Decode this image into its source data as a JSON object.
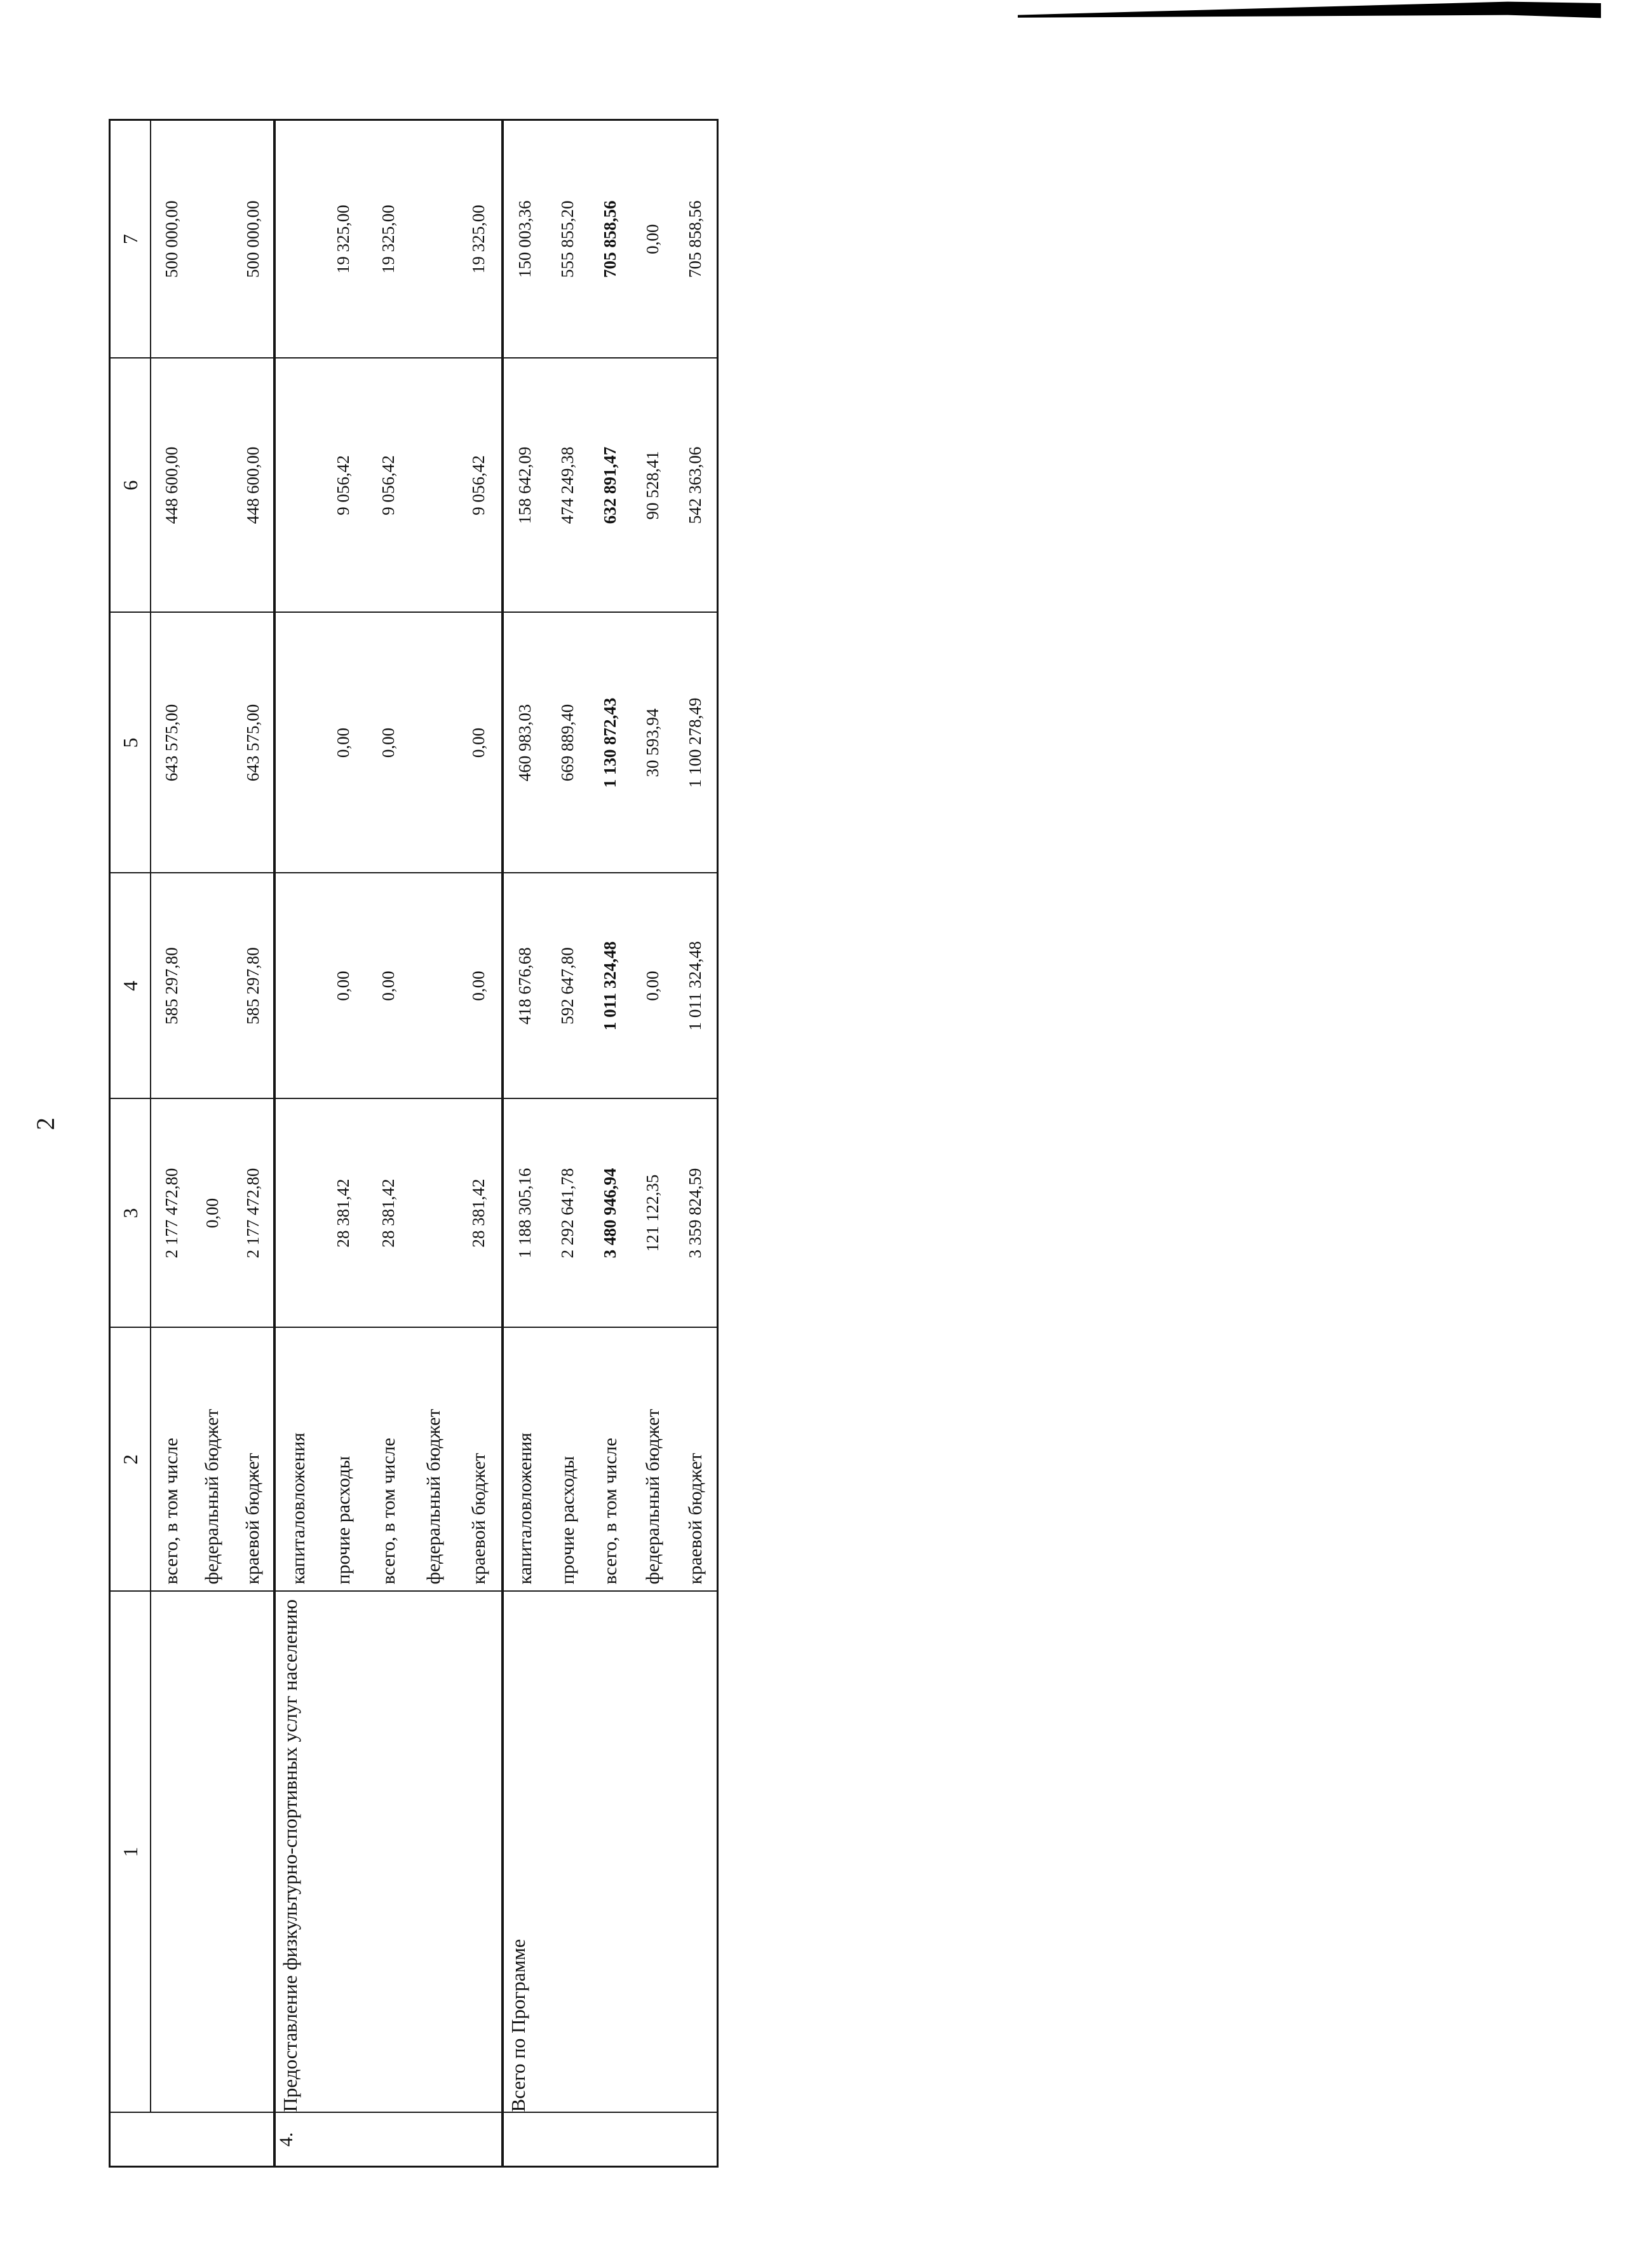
{
  "page": {
    "number": "2"
  },
  "colors": {
    "paper": "#ffffff",
    "ink": "#111111",
    "table_border": "#1b1b1b",
    "artifact": "#000000"
  },
  "table": {
    "header": [
      "1",
      "2",
      "3",
      "4",
      "5",
      "6",
      "7"
    ],
    "groups": [
      {
        "num": "",
        "description": "",
        "labels": [
          "всего, в том числе",
          "федеральный бюджет",
          "краевой бюджет"
        ],
        "values": {
          "c3": [
            "2 177 472,80",
            "0,00",
            "2 177 472,80"
          ],
          "c4": [
            "585 297,80",
            "",
            "585 297,80"
          ],
          "c5": [
            "643 575,00",
            "",
            "643 575,00"
          ],
          "c6": [
            "448 600,00",
            "",
            "448 600,00"
          ],
          "c7": [
            "500 000,00",
            "",
            "500 000,00"
          ]
        }
      },
      {
        "num": "4.",
        "description": "Предоставление физкультурно-спортивных услуг населению",
        "labels": [
          "капиталовложения",
          "прочие расходы",
          "всего, в том числе",
          "федеральный бюджет",
          "краевой бюджет"
        ],
        "values": {
          "c3": [
            "",
            "28 381,42",
            "28 381,42",
            "",
            "28 381,42"
          ],
          "c4": [
            "",
            "0,00",
            "0,00",
            "",
            "0,00"
          ],
          "c5": [
            "",
            "0,00",
            "0,00",
            "",
            "0,00"
          ],
          "c6": [
            "",
            "9 056,42",
            "9 056,42",
            "",
            "9 056,42"
          ],
          "c7": [
            "",
            "19 325,00",
            "19 325,00",
            "",
            "19 325,00"
          ]
        }
      },
      {
        "num": "",
        "description": "Всего по Программе",
        "labels": [
          "капиталовложения",
          "прочие расходы",
          "всего, в том числе",
          "федеральный бюджет",
          "краевой бюджет"
        ],
        "values": {
          "c3": [
            "1 188 305,16",
            "2 292 641,78",
            {
              "text": "3 480 946,94",
              "bold": true
            },
            "121 122,35",
            "3 359 824,59"
          ],
          "c4": [
            "418 676,68",
            "592 647,80",
            {
              "text": "1 011 324,48",
              "bold": true
            },
            "0,00",
            "1 011 324,48"
          ],
          "c5": [
            "460 983,03",
            "669 889,40",
            {
              "text": "1 130 872,43",
              "bold": true
            },
            "30 593,94",
            "1 100 278,49"
          ],
          "c6": [
            "158 642,09",
            "474 249,38",
            {
              "text": "632 891,47",
              "bold": true
            },
            "90 528,41",
            "542 363,06"
          ],
          "c7": [
            "150 003,36",
            "555 855,20",
            {
              "text": "705 858,56",
              "bold": true
            },
            "0,00",
            "705 858,56"
          ]
        }
      }
    ]
  }
}
